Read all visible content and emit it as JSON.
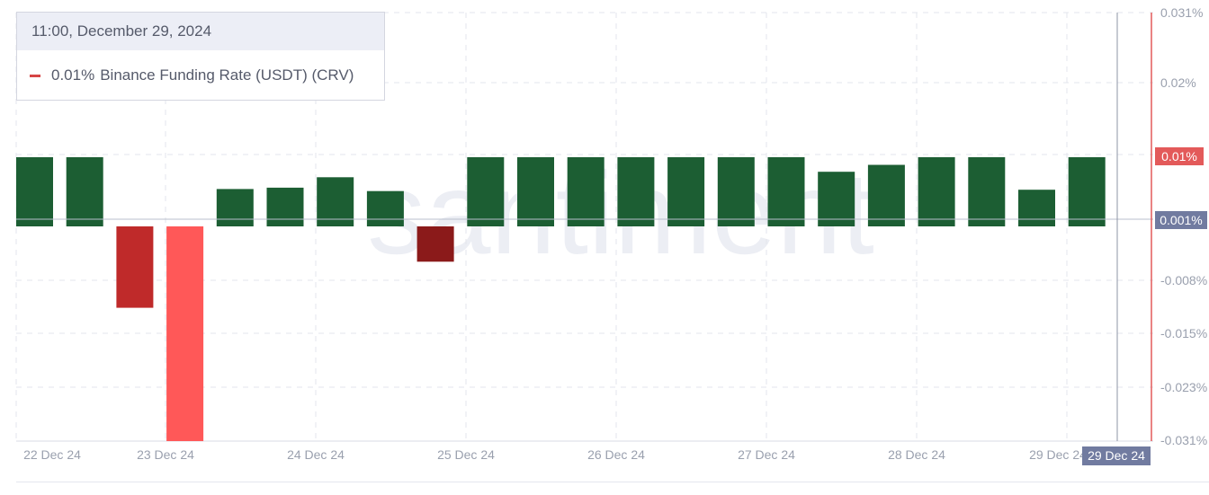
{
  "tooltip": {
    "date": "11:00, December 29, 2024",
    "value": "0.01%",
    "series_name": "Binance Funding Rate (USDT) (CRV)"
  },
  "watermark": "santiment",
  "colors": {
    "positive_bar": "#1c5e33",
    "negative_bar": "#bf2a2a",
    "negative_bar_extreme": "#ff5858",
    "negative_bar_dark": "#8b1a1a",
    "line_accent": "#e35a5a",
    "axis_text": "#9aa0ae",
    "grid": "#e3e5ec",
    "badge_current": "#717ba0",
    "badge_value_red": "#e35a5a"
  },
  "chart_data": {
    "type": "bar",
    "title": "",
    "series": [
      {
        "name": "Binance Funding Rate (USDT) (CRV)",
        "values": [
          0.01,
          0.01,
          -0.0113,
          -0.0298,
          0.0054,
          0.0056,
          0.0071,
          0.0051,
          -0.0049,
          0.01,
          0.01,
          0.01,
          0.01,
          0.01,
          0.01,
          0.01,
          0.0079,
          0.0089,
          0.01,
          0.01,
          0.0053,
          0.01
        ]
      }
    ],
    "x_labels": [
      "22 Dec 24",
      "23 Dec 24",
      "24 Dec 24",
      "25 Dec 24",
      "26 Dec 24",
      "27 Dec 24",
      "28 Dec 24",
      "29 Dec 24"
    ],
    "y_ticks": [
      "0.031%",
      "0.02%",
      "0.01%",
      "0.001%",
      "-0.008%",
      "-0.015%",
      "-0.023%",
      "-0.031%"
    ],
    "ylim": [
      -0.031,
      0.031
    ],
    "grid": true,
    "current_value_label": "0.01%",
    "zero_label": "0.001%",
    "crosshair_label": "29 Dec 24"
  }
}
